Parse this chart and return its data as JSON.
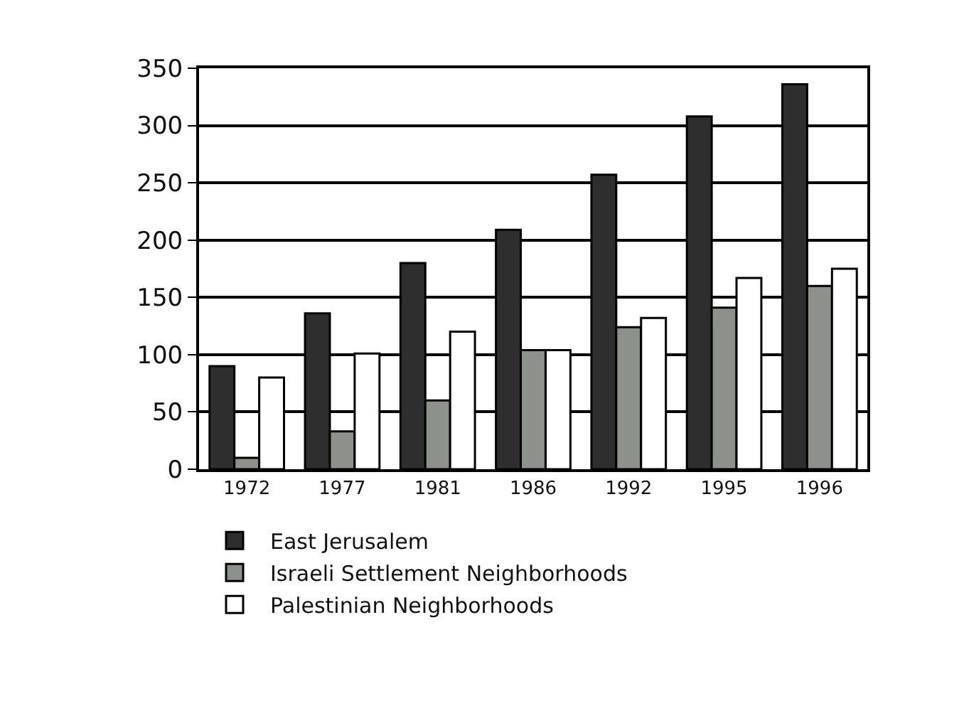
{
  "chart_data": {
    "type": "bar",
    "categories": [
      "1972",
      "1977",
      "1981",
      "1986",
      "1992",
      "1995",
      "1996"
    ],
    "series": [
      {
        "name": "East Jerusalem",
        "color": "#2e2e2e",
        "values": [
          90,
          136,
          180,
          209,
          257,
          308,
          336
        ]
      },
      {
        "name": "Israeli Settlement Neighborhoods",
        "color": "#8c918a",
        "values": [
          10,
          33,
          60,
          104,
          124,
          141,
          160
        ]
      },
      {
        "name": "Palestinian Neighborhoods",
        "color": "#ffffff",
        "values": [
          80,
          101,
          120,
          104,
          132,
          167,
          175
        ]
      }
    ],
    "ylim": [
      0,
      350
    ],
    "yticks": [
      0,
      50,
      100,
      150,
      200,
      250,
      300,
      350
    ],
    "grid": "y",
    "legend": "bottom left"
  }
}
